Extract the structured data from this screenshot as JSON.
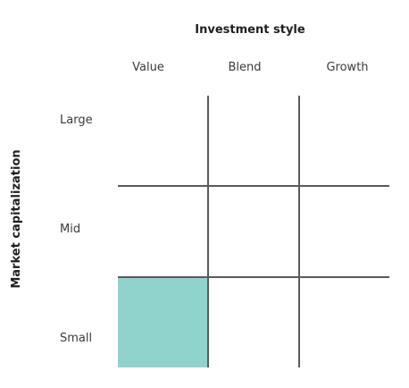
{
  "diagram": {
    "title": "Investment style",
    "y_axis_title": "Market capitalization",
    "columns": [
      "Value",
      "Blend",
      "Growth"
    ],
    "rows": [
      "Large",
      "Mid",
      "Small"
    ],
    "highlighted_cell": {
      "row": "Small",
      "column": "Value"
    },
    "colors": {
      "highlight": "#8fd3cc",
      "grid_line": "#5a5a5a"
    }
  }
}
